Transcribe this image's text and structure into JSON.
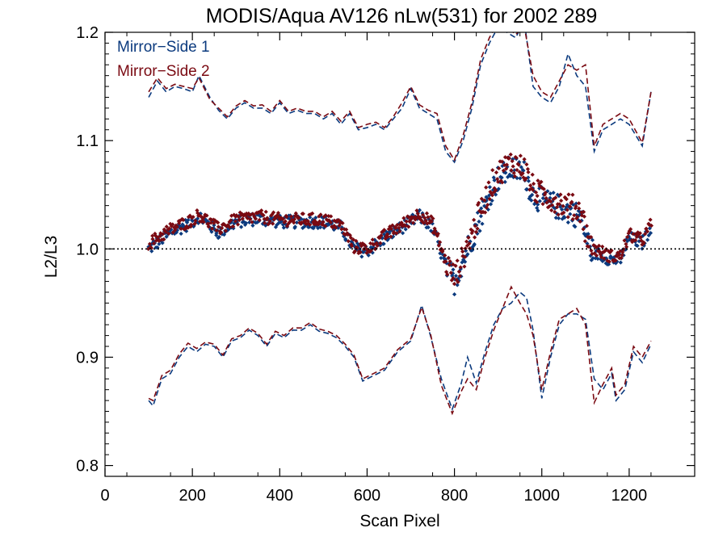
{
  "chart_data": {
    "type": "scatter",
    "title": "MODIS/Aqua AV126 nLw(531) for 2002 289",
    "xlabel": "Scan Pixel",
    "ylabel": "L2/L3",
    "xlim": [
      0,
      1350
    ],
    "ylim": [
      0.79,
      1.2
    ],
    "x_ticks": [
      0,
      200,
      400,
      600,
      800,
      1000,
      1200
    ],
    "x_tick_labels": [
      "0",
      "200",
      "400",
      "600",
      "800",
      "1000",
      "1200"
    ],
    "y_ticks": [
      0.8,
      0.9,
      1.0,
      1.1,
      1.2
    ],
    "y_tick_labels": [
      "0.8",
      "0.9",
      "1.0",
      "1.1",
      "1.2"
    ],
    "reference_line": 1.0,
    "legend_position": "top-left",
    "series": [
      {
        "name": "Mirror−Side 1",
        "color": "#0b3a7e",
        "mean": {
          "x": [
            100,
            150,
            200,
            215,
            260,
            300,
            350,
            400,
            450,
            500,
            540,
            570,
            600,
            640,
            680,
            720,
            750,
            780,
            800,
            820,
            850,
            880,
            900,
            930,
            960,
            980,
            1000,
            1030,
            1060,
            1090,
            1110,
            1130,
            1160,
            1180,
            1200,
            1230,
            1250
          ],
          "y": [
            1.0,
            1.015,
            1.025,
            1.03,
            1.015,
            1.025,
            1.028,
            1.025,
            1.025,
            1.025,
            1.02,
            1.0,
            0.998,
            1.01,
            1.02,
            1.03,
            1.02,
            0.985,
            0.97,
            0.99,
            1.02,
            1.05,
            1.065,
            1.075,
            1.07,
            1.05,
            1.045,
            1.04,
            1.035,
            1.03,
            1.0,
            0.995,
            0.99,
            0.99,
            1.01,
            1.005,
            1.02
          ]
        },
        "upper": {
          "x": [
            100,
            120,
            140,
            160,
            180,
            200,
            215,
            240,
            260,
            280,
            300,
            320,
            340,
            360,
            380,
            400,
            420,
            440,
            460,
            480,
            500,
            520,
            540,
            560,
            580,
            600,
            620,
            640,
            660,
            680,
            700,
            720,
            740,
            760,
            780,
            800,
            820,
            840,
            860,
            880,
            900,
            920,
            940,
            960,
            980,
            1000,
            1020,
            1040,
            1060,
            1080,
            1100,
            1120,
            1140,
            1160,
            1180,
            1200,
            1230,
            1250
          ],
          "y": [
            1.14,
            1.155,
            1.145,
            1.15,
            1.148,
            1.145,
            1.16,
            1.14,
            1.128,
            1.12,
            1.13,
            1.135,
            1.13,
            1.13,
            1.125,
            1.135,
            1.125,
            1.128,
            1.125,
            1.125,
            1.12,
            1.125,
            1.115,
            1.125,
            1.11,
            1.112,
            1.115,
            1.11,
            1.12,
            1.13,
            1.148,
            1.13,
            1.125,
            1.12,
            1.09,
            1.08,
            1.1,
            1.13,
            1.17,
            1.19,
            1.205,
            1.2,
            1.195,
            1.21,
            1.15,
            1.14,
            1.135,
            1.15,
            1.18,
            1.16,
            1.15,
            1.09,
            1.11,
            1.115,
            1.12,
            1.115,
            1.095,
            1.145
          ]
        },
        "lower": {
          "x": [
            100,
            110,
            130,
            150,
            170,
            190,
            210,
            230,
            250,
            270,
            290,
            310,
            330,
            350,
            370,
            390,
            410,
            430,
            450,
            470,
            490,
            510,
            530,
            550,
            570,
            590,
            610,
            640,
            670,
            700,
            725,
            745,
            770,
            795,
            815,
            830,
            850,
            870,
            890,
            910,
            930,
            950,
            965,
            980,
            1000,
            1020,
            1040,
            1060,
            1080,
            1100,
            1120,
            1140,
            1160,
            1170,
            1190,
            1210,
            1230,
            1250
          ],
          "y": [
            0.86,
            0.855,
            0.88,
            0.885,
            0.9,
            0.91,
            0.905,
            0.912,
            0.91,
            0.9,
            0.915,
            0.918,
            0.925,
            0.92,
            0.91,
            0.922,
            0.918,
            0.925,
            0.925,
            0.93,
            0.924,
            0.922,
            0.918,
            0.91,
            0.9,
            0.878,
            0.882,
            0.888,
            0.905,
            0.915,
            0.948,
            0.92,
            0.88,
            0.852,
            0.875,
            0.9,
            0.876,
            0.905,
            0.93,
            0.945,
            0.95,
            0.96,
            0.955,
            0.925,
            0.862,
            0.9,
            0.93,
            0.94,
            0.94,
            0.935,
            0.88,
            0.87,
            0.885,
            0.86,
            0.87,
            0.905,
            0.895,
            0.912
          ]
        }
      },
      {
        "name": "Mirror−Side 2",
        "color": "#7a0a12",
        "mean": {
          "x": [
            100,
            150,
            200,
            215,
            260,
            300,
            350,
            400,
            450,
            500,
            540,
            570,
            600,
            640,
            680,
            720,
            750,
            780,
            800,
            820,
            850,
            880,
            900,
            930,
            960,
            980,
            1000,
            1030,
            1060,
            1090,
            1110,
            1130,
            1160,
            1180,
            1200,
            1230,
            1250
          ],
          "y": [
            1.005,
            1.018,
            1.027,
            1.032,
            1.018,
            1.027,
            1.03,
            1.027,
            1.027,
            1.027,
            1.022,
            1.002,
            1.0,
            1.012,
            1.022,
            1.033,
            1.023,
            0.988,
            0.973,
            0.993,
            1.025,
            1.055,
            1.07,
            1.08,
            1.075,
            1.055,
            1.05,
            1.045,
            1.04,
            1.035,
            1.003,
            0.998,
            0.993,
            0.993,
            1.013,
            1.008,
            1.023
          ]
        },
        "upper": {
          "x": [
            100,
            120,
            140,
            160,
            180,
            200,
            215,
            240,
            260,
            280,
            300,
            320,
            340,
            360,
            380,
            400,
            420,
            440,
            460,
            480,
            500,
            520,
            540,
            560,
            580,
            600,
            620,
            640,
            660,
            680,
            700,
            720,
            740,
            760,
            780,
            800,
            820,
            840,
            860,
            880,
            900,
            920,
            940,
            960,
            980,
            1000,
            1020,
            1040,
            1060,
            1080,
            1100,
            1120,
            1140,
            1160,
            1180,
            1200,
            1230,
            1250
          ],
          "y": [
            1.145,
            1.158,
            1.148,
            1.152,
            1.15,
            1.148,
            1.158,
            1.138,
            1.13,
            1.122,
            1.132,
            1.137,
            1.132,
            1.133,
            1.127,
            1.137,
            1.127,
            1.13,
            1.127,
            1.127,
            1.122,
            1.127,
            1.118,
            1.127,
            1.112,
            1.115,
            1.117,
            1.112,
            1.122,
            1.135,
            1.15,
            1.133,
            1.128,
            1.125,
            1.095,
            1.082,
            1.105,
            1.135,
            1.175,
            1.195,
            1.21,
            1.205,
            1.198,
            1.205,
            1.16,
            1.145,
            1.14,
            1.155,
            1.17,
            1.165,
            1.17,
            1.095,
            1.115,
            1.12,
            1.125,
            1.12,
            1.098,
            1.145
          ]
        },
        "lower": {
          "x": [
            100,
            110,
            130,
            150,
            170,
            190,
            210,
            230,
            250,
            270,
            290,
            310,
            330,
            350,
            370,
            390,
            410,
            430,
            450,
            470,
            490,
            510,
            530,
            550,
            570,
            590,
            610,
            640,
            670,
            700,
            725,
            745,
            770,
            795,
            815,
            830,
            850,
            870,
            890,
            910,
            930,
            950,
            965,
            980,
            1000,
            1020,
            1040,
            1060,
            1080,
            1100,
            1120,
            1140,
            1160,
            1170,
            1190,
            1210,
            1230,
            1250
          ],
          "y": [
            0.862,
            0.86,
            0.883,
            0.888,
            0.903,
            0.913,
            0.908,
            0.914,
            0.912,
            0.902,
            0.917,
            0.92,
            0.927,
            0.922,
            0.912,
            0.924,
            0.92,
            0.927,
            0.927,
            0.932,
            0.926,
            0.924,
            0.92,
            0.912,
            0.902,
            0.88,
            0.884,
            0.89,
            0.907,
            0.917,
            0.946,
            0.922,
            0.874,
            0.848,
            0.868,
            0.88,
            0.87,
            0.9,
            0.925,
            0.945,
            0.965,
            0.95,
            0.94,
            0.92,
            0.87,
            0.905,
            0.935,
            0.94,
            0.945,
            0.93,
            0.858,
            0.875,
            0.89,
            0.865,
            0.875,
            0.91,
            0.9,
            0.915
          ]
        }
      }
    ]
  }
}
